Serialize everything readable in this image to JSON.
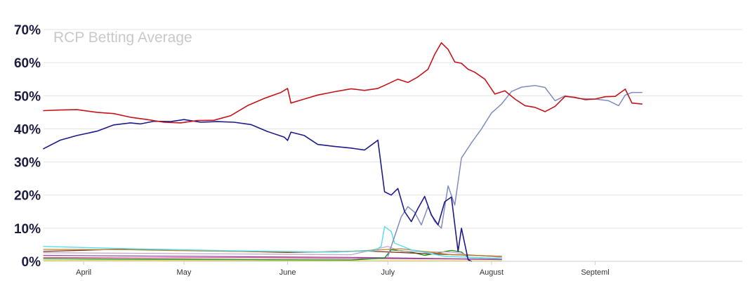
{
  "chart_data": {
    "type": "line",
    "title": "RCP Betting Average",
    "xlabel": "",
    "ylabel": "",
    "ylim": [
      0,
      70
    ],
    "y_ticks": [
      0,
      10,
      20,
      30,
      40,
      50,
      60,
      70
    ],
    "y_tick_labels": [
      "0%",
      "10%",
      "20%",
      "30%",
      "40%",
      "50%",
      "60%",
      "70%"
    ],
    "x_ticks": [
      {
        "label": "April",
        "x": "2024-04-01"
      },
      {
        "label": "May",
        "x": "2024-05-01"
      },
      {
        "label": "June",
        "x": "2024-06-01"
      },
      {
        "label": "July",
        "x": "2024-07-01"
      },
      {
        "label": "August",
        "x": "2024-08-01"
      },
      {
        "label": "Septeml",
        "x": "2024-09-01"
      }
    ],
    "xlim": [
      "2024-03-20",
      "2024-10-15"
    ],
    "grid": true,
    "legend": "none",
    "series": [
      {
        "color": "#c4141a",
        "width": 1.6,
        "points": [
          [
            "2024-03-20",
            45.5
          ],
          [
            "2024-03-25",
            45.7
          ],
          [
            "2024-03-30",
            45.8
          ],
          [
            "2024-04-05",
            45.0
          ],
          [
            "2024-04-10",
            44.6
          ],
          [
            "2024-04-15",
            43.5
          ],
          [
            "2024-04-20",
            42.8
          ],
          [
            "2024-04-25",
            42.0
          ],
          [
            "2024-04-30",
            41.8
          ],
          [
            "2024-05-05",
            42.5
          ],
          [
            "2024-05-10",
            42.6
          ],
          [
            "2024-05-15",
            44.0
          ],
          [
            "2024-05-20",
            47.0
          ],
          [
            "2024-05-25",
            49.2
          ],
          [
            "2024-05-30",
            51.0
          ],
          [
            "2024-06-01",
            52.2
          ],
          [
            "2024-06-02",
            47.8
          ],
          [
            "2024-06-06",
            49.0
          ],
          [
            "2024-06-10",
            50.2
          ],
          [
            "2024-06-15",
            51.2
          ],
          [
            "2024-06-20",
            52.1
          ],
          [
            "2024-06-24",
            51.6
          ],
          [
            "2024-06-28",
            52.2
          ],
          [
            "2024-07-01",
            53.6
          ],
          [
            "2024-07-04",
            55.0
          ],
          [
            "2024-07-07",
            54.0
          ],
          [
            "2024-07-10",
            55.7
          ],
          [
            "2024-07-13",
            58.0
          ],
          [
            "2024-07-15",
            62.5
          ],
          [
            "2024-07-17",
            66.0
          ],
          [
            "2024-07-19",
            64.0
          ],
          [
            "2024-07-21",
            60.2
          ],
          [
            "2024-07-23",
            59.8
          ],
          [
            "2024-07-25",
            58.0
          ],
          [
            "2024-07-27",
            57.1
          ],
          [
            "2024-07-30",
            55.0
          ],
          [
            "2024-08-02",
            50.5
          ],
          [
            "2024-08-05",
            51.5
          ],
          [
            "2024-08-08",
            49.0
          ],
          [
            "2024-08-11",
            47.0
          ],
          [
            "2024-08-14",
            46.5
          ],
          [
            "2024-08-17",
            45.2
          ],
          [
            "2024-08-20",
            46.8
          ],
          [
            "2024-08-23",
            49.8
          ],
          [
            "2024-08-26",
            49.5
          ],
          [
            "2024-08-29",
            48.8
          ],
          [
            "2024-09-01",
            49.0
          ],
          [
            "2024-09-04",
            49.7
          ],
          [
            "2024-09-07",
            49.8
          ],
          [
            "2024-09-10",
            52.0
          ],
          [
            "2024-09-12",
            47.8
          ],
          [
            "2024-09-15",
            47.5
          ]
        ]
      },
      {
        "color": "#1e1a8c",
        "width": 1.6,
        "points": [
          [
            "2024-03-20",
            34.0
          ],
          [
            "2024-03-25",
            36.6
          ],
          [
            "2024-03-30",
            38.0
          ],
          [
            "2024-04-05",
            39.3
          ],
          [
            "2024-04-10",
            41.2
          ],
          [
            "2024-04-15",
            41.8
          ],
          [
            "2024-04-18",
            41.5
          ],
          [
            "2024-04-22",
            42.3
          ],
          [
            "2024-04-27",
            42.2
          ],
          [
            "2024-05-01",
            42.8
          ],
          [
            "2024-05-06",
            42.0
          ],
          [
            "2024-05-11",
            42.2
          ],
          [
            "2024-05-16",
            42.0
          ],
          [
            "2024-05-21",
            41.3
          ],
          [
            "2024-05-26",
            39.2
          ],
          [
            "2024-05-31",
            37.5
          ],
          [
            "2024-06-01",
            36.5
          ],
          [
            "2024-06-02",
            39.0
          ],
          [
            "2024-06-06",
            38.0
          ],
          [
            "2024-06-10",
            35.3
          ],
          [
            "2024-06-15",
            34.7
          ],
          [
            "2024-06-20",
            34.2
          ],
          [
            "2024-06-24",
            33.6
          ],
          [
            "2024-06-27",
            35.8
          ],
          [
            "2024-06-28",
            36.6
          ],
          [
            "2024-06-30",
            21.0
          ],
          [
            "2024-07-02",
            20.0
          ],
          [
            "2024-07-04",
            22.0
          ],
          [
            "2024-07-06",
            15.0
          ],
          [
            "2024-07-08",
            12.0
          ],
          [
            "2024-07-10",
            16.0
          ],
          [
            "2024-07-12",
            19.6
          ],
          [
            "2024-07-14",
            14.0
          ],
          [
            "2024-07-16",
            11.0
          ],
          [
            "2024-07-18",
            18.0
          ],
          [
            "2024-07-20",
            19.4
          ],
          [
            "2024-07-22",
            3.0
          ],
          [
            "2024-07-23",
            10.0
          ],
          [
            "2024-07-25",
            0.5
          ],
          [
            "2024-07-26",
            0.0
          ]
        ]
      },
      {
        "color": "#7f8cc2",
        "width": 1.5,
        "points": [
          [
            "2024-07-01",
            1.5
          ],
          [
            "2024-07-05",
            13.5
          ],
          [
            "2024-07-07",
            16.5
          ],
          [
            "2024-07-09",
            14.8
          ],
          [
            "2024-07-11",
            11.0
          ],
          [
            "2024-07-13",
            16.5
          ],
          [
            "2024-07-15",
            12.0
          ],
          [
            "2024-07-17",
            10.0
          ],
          [
            "2024-07-19",
            22.8
          ],
          [
            "2024-07-21",
            17.0
          ],
          [
            "2024-07-23",
            31.2
          ],
          [
            "2024-07-26",
            35.8
          ],
          [
            "2024-07-29",
            40.0
          ],
          [
            "2024-08-01",
            44.8
          ],
          [
            "2024-08-04",
            47.5
          ],
          [
            "2024-08-07",
            51.3
          ],
          [
            "2024-08-10",
            52.6
          ],
          [
            "2024-08-14",
            53.1
          ],
          [
            "2024-08-17",
            52.5
          ],
          [
            "2024-08-20",
            48.5
          ],
          [
            "2024-08-23",
            50.0
          ],
          [
            "2024-08-27",
            49.2
          ],
          [
            "2024-09-01",
            49.0
          ],
          [
            "2024-09-05",
            48.5
          ],
          [
            "2024-09-08",
            47.0
          ],
          [
            "2024-09-10",
            50.2
          ],
          [
            "2024-09-12",
            51.0
          ],
          [
            "2024-09-15",
            51.0
          ]
        ]
      },
      {
        "color": "#55dcf0",
        "width": 1.4,
        "points": [
          [
            "2024-03-20",
            4.5
          ],
          [
            "2024-04-15",
            3.8
          ],
          [
            "2024-05-15",
            3.2
          ],
          [
            "2024-06-15",
            2.8
          ],
          [
            "2024-06-27",
            3.2
          ],
          [
            "2024-06-29",
            4.5
          ],
          [
            "2024-06-30",
            10.5
          ],
          [
            "2024-07-02",
            9.0
          ],
          [
            "2024-07-03",
            5.5
          ],
          [
            "2024-07-08",
            3.5
          ],
          [
            "2024-07-18",
            1.5
          ],
          [
            "2024-08-04",
            0.8
          ]
        ]
      },
      {
        "color": "#b5862e",
        "width": 1.3,
        "points": [
          [
            "2024-03-20",
            3.6
          ],
          [
            "2024-04-15",
            3.5
          ],
          [
            "2024-05-15",
            3.0
          ],
          [
            "2024-06-15",
            2.8
          ],
          [
            "2024-07-05",
            3.8
          ],
          [
            "2024-07-20",
            2.0
          ],
          [
            "2024-08-04",
            1.5
          ]
        ]
      },
      {
        "color": "#7a2f10",
        "width": 1.3,
        "points": [
          [
            "2024-03-20",
            3.0
          ],
          [
            "2024-04-10",
            3.6
          ],
          [
            "2024-05-01",
            3.4
          ],
          [
            "2024-06-01",
            2.7
          ],
          [
            "2024-06-25",
            3.1
          ],
          [
            "2024-07-15",
            2.2
          ],
          [
            "2024-08-04",
            1.5
          ]
        ]
      },
      {
        "color": "#c7a6c9",
        "width": 1.3,
        "points": [
          [
            "2024-03-20",
            2.6
          ],
          [
            "2024-04-20",
            2.4
          ],
          [
            "2024-05-20",
            2.2
          ],
          [
            "2024-06-20",
            2.0
          ],
          [
            "2024-07-01",
            4.5
          ],
          [
            "2024-07-05",
            3.0
          ],
          [
            "2024-07-20",
            2.8
          ],
          [
            "2024-07-25",
            2.0
          ],
          [
            "2024-08-04",
            1.2
          ]
        ]
      },
      {
        "color": "#1f8f23",
        "width": 1.4,
        "points": [
          [
            "2024-03-20",
            0.8
          ],
          [
            "2024-04-20",
            0.6
          ],
          [
            "2024-05-20",
            0.5
          ],
          [
            "2024-06-20",
            0.4
          ],
          [
            "2024-06-30",
            1.0
          ],
          [
            "2024-07-02",
            3.5
          ],
          [
            "2024-07-08",
            2.8
          ],
          [
            "2024-07-12",
            1.8
          ],
          [
            "2024-07-20",
            3.3
          ],
          [
            "2024-07-23",
            2.8
          ],
          [
            "2024-07-25",
            1.2
          ],
          [
            "2024-08-04",
            0.8
          ]
        ]
      },
      {
        "color": "#8e44ad",
        "width": 1.2,
        "points": [
          [
            "2024-03-20",
            1.8
          ],
          [
            "2024-04-20",
            1.6
          ],
          [
            "2024-05-20",
            1.4
          ],
          [
            "2024-06-20",
            1.2
          ],
          [
            "2024-07-20",
            0.8
          ],
          [
            "2024-08-04",
            0.6
          ]
        ]
      },
      {
        "color": "#d4477a",
        "width": 1.2,
        "points": [
          [
            "2024-03-20",
            1.2
          ],
          [
            "2024-04-20",
            1.0
          ],
          [
            "2024-05-20",
            1.1
          ],
          [
            "2024-06-20",
            0.9
          ],
          [
            "2024-07-20",
            0.7
          ],
          [
            "2024-08-04",
            0.5
          ]
        ]
      },
      {
        "color": "#e3d447",
        "width": 1.2,
        "points": [
          [
            "2024-03-20",
            0.3
          ],
          [
            "2024-04-20",
            0.3
          ],
          [
            "2024-05-20",
            0.2
          ],
          [
            "2024-06-20",
            0.2
          ],
          [
            "2024-07-20",
            0.2
          ],
          [
            "2024-08-04",
            0.1
          ]
        ]
      }
    ]
  }
}
